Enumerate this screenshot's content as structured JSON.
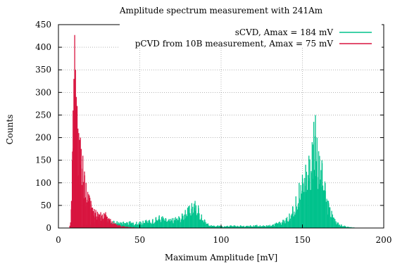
{
  "chart_data": {
    "type": "bar",
    "title": "Amplitude spectrum measurement with 241Am",
    "xlabel": "Maximum Amplitude [mV]",
    "ylabel": "Counts",
    "xlim": [
      0,
      200
    ],
    "ylim": [
      0,
      450
    ],
    "x_ticks": [
      "0",
      "50",
      "100",
      "150",
      "200"
    ],
    "y_ticks": [
      "0",
      "50",
      "100",
      "150",
      "200",
      "250",
      "300",
      "350",
      "400",
      "450"
    ],
    "grid": true,
    "legend_position": "top-right",
    "series": [
      {
        "name": "sCVD, Amax = 184 mV",
        "color": "#00c28c",
        "x": [
          7,
          10,
          12,
          14,
          16,
          18,
          20,
          22,
          24,
          26,
          28,
          30,
          32,
          34,
          36,
          38,
          40,
          42,
          44,
          46,
          48,
          50,
          52,
          54,
          56,
          58,
          60,
          62,
          64,
          66,
          68,
          70,
          72,
          74,
          76,
          78,
          80,
          82,
          84,
          86,
          88,
          90,
          92,
          94,
          96,
          98,
          100,
          102,
          104,
          106,
          108,
          110,
          112,
          114,
          116,
          118,
          120,
          122,
          124,
          126,
          128,
          130,
          132,
          134,
          136,
          138,
          140,
          142,
          144,
          146,
          148,
          150,
          152,
          154,
          156,
          157,
          158,
          159,
          160,
          162,
          164,
          166,
          168,
          170,
          172,
          174,
          176,
          178,
          180,
          182,
          184
        ],
        "values": [
          0,
          2,
          4,
          6,
          8,
          10,
          12,
          14,
          14,
          16,
          16,
          15,
          14,
          16,
          15,
          13,
          14,
          13,
          15,
          12,
          14,
          14,
          16,
          18,
          18,
          20,
          24,
          28,
          26,
          22,
          20,
          22,
          24,
          26,
          32,
          40,
          48,
          55,
          60,
          50,
          30,
          18,
          10,
          6,
          5,
          6,
          5,
          4,
          5,
          6,
          6,
          5,
          6,
          5,
          5,
          6,
          6,
          7,
          6,
          6,
          6,
          7,
          8,
          12,
          14,
          18,
          22,
          32,
          48,
          70,
          100,
          118,
          140,
          160,
          190,
          235,
          250,
          200,
          170,
          150,
          100,
          60,
          38,
          20,
          12,
          8,
          5,
          3,
          2,
          1,
          0
        ]
      },
      {
        "name": "pCVD from 10B measurement, Amax = 75 mV",
        "color": "#d8143f",
        "x": [
          7,
          8,
          8.5,
          9,
          9.5,
          10,
          10.5,
          11,
          11.5,
          12,
          12.5,
          13,
          13.5,
          14,
          15,
          16,
          17,
          18,
          19,
          20,
          21,
          22,
          23,
          24,
          25,
          26,
          27,
          28,
          29,
          30,
          31,
          32,
          33,
          34,
          35,
          36,
          38,
          40,
          42,
          44,
          46,
          48,
          50
        ],
        "values": [
          5,
          60,
          150,
          260,
          330,
          427,
          350,
          290,
          270,
          220,
          210,
          195,
          200,
          175,
          160,
          125,
          100,
          80,
          72,
          60,
          45,
          42,
          40,
          36,
          30,
          35,
          30,
          33,
          35,
          25,
          22,
          20,
          15,
          12,
          10,
          8,
          6,
          4,
          3,
          2,
          2,
          1,
          0
        ]
      }
    ]
  }
}
